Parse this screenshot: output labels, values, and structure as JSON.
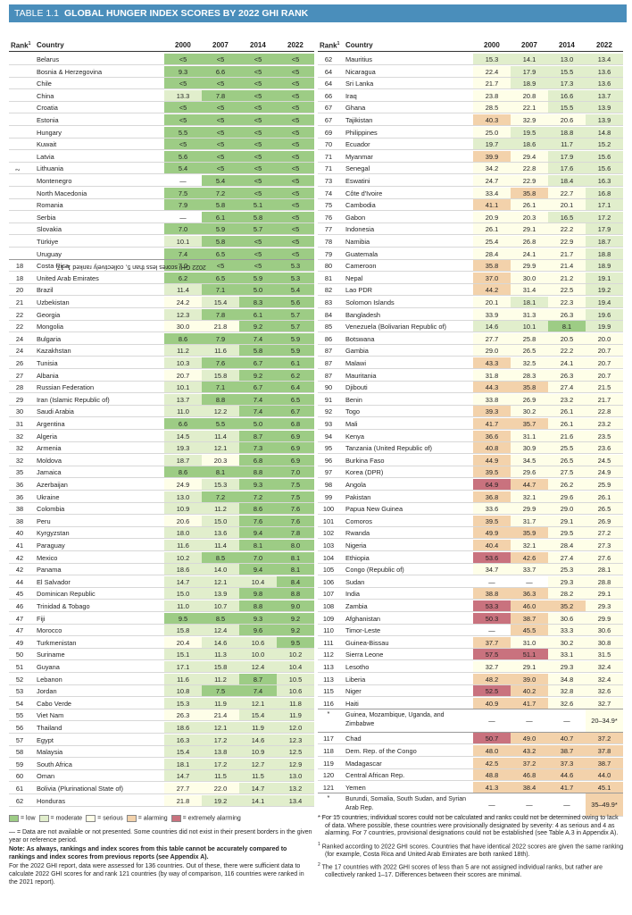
{
  "title": {
    "number": "TABLE 1.1",
    "text": "GLOBAL HUNGER INDEX SCORES BY 2022 GHI RANK"
  },
  "headers": {
    "rank": "Rank",
    "rank_sup": "1",
    "country": "Country",
    "y0": "2000",
    "y1": "2007",
    "y2": "2014",
    "y3": "2022"
  },
  "side_label": {
    "text": "2022 GHI scores less than 5, collectively ranked 1–17.",
    "sup": "2"
  },
  "left_rows": [
    [
      "",
      "Belarus",
      "<5",
      "<5",
      "<5",
      "<5"
    ],
    [
      "",
      "Bosnia & Herzegovina",
      "9.3",
      "6.6",
      "<5",
      "<5"
    ],
    [
      "",
      "Chile",
      "<5",
      "<5",
      "<5",
      "<5"
    ],
    [
      "",
      "China",
      "13.3",
      "7.8",
      "<5",
      "<5"
    ],
    [
      "",
      "Croatia",
      "<5",
      "<5",
      "<5",
      "<5"
    ],
    [
      "",
      "Estonia",
      "<5",
      "<5",
      "<5",
      "<5"
    ],
    [
      "",
      "Hungary",
      "5.5",
      "<5",
      "<5",
      "<5"
    ],
    [
      "",
      "Kuwait",
      "<5",
      "<5",
      "<5",
      "<5"
    ],
    [
      "",
      "Latvia",
      "5.6",
      "<5",
      "<5",
      "<5"
    ],
    [
      "",
      "Lithuania",
      "5.4",
      "<5",
      "<5",
      "<5"
    ],
    [
      "",
      "Montenegro",
      "—",
      "5.4",
      "<5",
      "<5"
    ],
    [
      "",
      "North Macedonia",
      "7.5",
      "7.2",
      "<5",
      "<5"
    ],
    [
      "",
      "Romania",
      "7.9",
      "5.8",
      "5.1",
      "<5"
    ],
    [
      "",
      "Serbia",
      "—",
      "6.1",
      "5.8",
      "<5"
    ],
    [
      "",
      "Slovakia",
      "7.0",
      "5.9",
      "5.7",
      "<5"
    ],
    [
      "",
      "Türkiye",
      "10.1",
      "5.8",
      "<5",
      "<5"
    ],
    [
      "",
      "Uruguay",
      "7.4",
      "6.5",
      "<5",
      "<5"
    ],
    [
      "18",
      "Costa Rica",
      "7.0",
      "<5",
      "<5",
      "5.3"
    ],
    [
      "18",
      "United Arab Emirates",
      "6.2",
      "6.5",
      "5.9",
      "5.3"
    ],
    [
      "20",
      "Brazil",
      "11.4",
      "7.1",
      "5.0",
      "5.4"
    ],
    [
      "21",
      "Uzbekistan",
      "24.2",
      "15.4",
      "8.3",
      "5.6"
    ],
    [
      "22",
      "Georgia",
      "12.3",
      "7.8",
      "6.1",
      "5.7"
    ],
    [
      "22",
      "Mongolia",
      "30.0",
      "21.8",
      "9.2",
      "5.7"
    ],
    [
      "24",
      "Bulgaria",
      "8.6",
      "7.9",
      "7.4",
      "5.9"
    ],
    [
      "24",
      "Kazakhstan",
      "11.2",
      "11.6",
      "5.8",
      "5.9"
    ],
    [
      "26",
      "Tunisia",
      "10.3",
      "7.6",
      "6.7",
      "6.1"
    ],
    [
      "27",
      "Albania",
      "20.7",
      "15.8",
      "9.2",
      "6.2"
    ],
    [
      "28",
      "Russian Federation",
      "10.1",
      "7.1",
      "6.7",
      "6.4"
    ],
    [
      "29",
      "Iran (Islamic Republic of)",
      "13.7",
      "8.8",
      "7.4",
      "6.5"
    ],
    [
      "30",
      "Saudi Arabia",
      "11.0",
      "12.2",
      "7.4",
      "6.7"
    ],
    [
      "31",
      "Argentina",
      "6.6",
      "5.5",
      "5.0",
      "6.8"
    ],
    [
      "32",
      "Algeria",
      "14.5",
      "11.4",
      "8.7",
      "6.9"
    ],
    [
      "32",
      "Armenia",
      "19.3",
      "12.1",
      "7.3",
      "6.9"
    ],
    [
      "32",
      "Moldova",
      "18.7",
      "20.3",
      "6.8",
      "6.9"
    ],
    [
      "35",
      "Jamaica",
      "8.6",
      "8.1",
      "8.8",
      "7.0"
    ],
    [
      "36",
      "Azerbaijan",
      "24.9",
      "15.3",
      "9.3",
      "7.5"
    ],
    [
      "36",
      "Ukraine",
      "13.0",
      "7.2",
      "7.2",
      "7.5"
    ],
    [
      "38",
      "Colombia",
      "10.9",
      "11.2",
      "8.6",
      "7.6"
    ],
    [
      "38",
      "Peru",
      "20.6",
      "15.0",
      "7.6",
      "7.6"
    ],
    [
      "40",
      "Kyrgyzstan",
      "18.0",
      "13.6",
      "9.4",
      "7.8"
    ],
    [
      "41",
      "Paraguay",
      "11.6",
      "11.4",
      "8.1",
      "8.0"
    ],
    [
      "42",
      "Mexico",
      "10.2",
      "8.5",
      "7.0",
      "8.1"
    ],
    [
      "42",
      "Panama",
      "18.6",
      "14.0",
      "9.4",
      "8.1"
    ],
    [
      "44",
      "El Salvador",
      "14.7",
      "12.1",
      "10.4",
      "8.4"
    ],
    [
      "45",
      "Dominican Republic",
      "15.0",
      "13.9",
      "9.8",
      "8.8"
    ],
    [
      "46",
      "Trinidad & Tobago",
      "11.0",
      "10.7",
      "8.8",
      "9.0"
    ],
    [
      "47",
      "Fiji",
      "9.5",
      "8.5",
      "9.3",
      "9.2"
    ],
    [
      "47",
      "Morocco",
      "15.8",
      "12.4",
      "9.6",
      "9.2"
    ],
    [
      "49",
      "Turkmenistan",
      "20.4",
      "14.6",
      "10.6",
      "9.5"
    ],
    [
      "50",
      "Suriname",
      "15.1",
      "11.3",
      "10.0",
      "10.2"
    ],
    [
      "51",
      "Guyana",
      "17.1",
      "15.8",
      "12.4",
      "10.4"
    ],
    [
      "52",
      "Lebanon",
      "11.6",
      "11.2",
      "8.7",
      "10.5"
    ],
    [
      "53",
      "Jordan",
      "10.8",
      "7.5",
      "7.4",
      "10.6"
    ],
    [
      "54",
      "Cabo Verde",
      "15.3",
      "11.9",
      "12.1",
      "11.8"
    ],
    [
      "55",
      "Viet Nam",
      "26.3",
      "21.4",
      "15.4",
      "11.9"
    ],
    [
      "56",
      "Thailand",
      "18.6",
      "12.1",
      "11.9",
      "12.0"
    ],
    [
      "57",
      "Egypt",
      "16.3",
      "17.2",
      "14.6",
      "12.3"
    ],
    [
      "58",
      "Malaysia",
      "15.4",
      "13.8",
      "10.9",
      "12.5"
    ],
    [
      "59",
      "South Africa",
      "18.1",
      "17.2",
      "12.7",
      "12.9"
    ],
    [
      "60",
      "Oman",
      "14.7",
      "11.5",
      "11.5",
      "13.0"
    ],
    [
      "61",
      "Bolivia (Plurinational State of)",
      "27.7",
      "22.0",
      "14.7",
      "13.2"
    ],
    [
      "62",
      "Honduras",
      "21.8",
      "19.2",
      "14.1",
      "13.4"
    ]
  ],
  "right_rows": [
    [
      "62",
      "Mauritius",
      "15.3",
      "14.1",
      "13.0",
      "13.4"
    ],
    [
      "64",
      "Nicaragua",
      "22.4",
      "17.9",
      "15.5",
      "13.6"
    ],
    [
      "64",
      "Sri Lanka",
      "21.7",
      "18.9",
      "17.3",
      "13.6"
    ],
    [
      "66",
      "Iraq",
      "23.8",
      "20.8",
      "16.6",
      "13.7"
    ],
    [
      "67",
      "Ghana",
      "28.5",
      "22.1",
      "15.5",
      "13.9"
    ],
    [
      "67",
      "Tajikistan",
      "40.3",
      "32.9",
      "20.6",
      "13.9"
    ],
    [
      "69",
      "Philippines",
      "25.0",
      "19.5",
      "18.8",
      "14.8"
    ],
    [
      "70",
      "Ecuador",
      "19.7",
      "18.6",
      "11.7",
      "15.2"
    ],
    [
      "71",
      "Myanmar",
      "39.9",
      "29.4",
      "17.9",
      "15.6"
    ],
    [
      "71",
      "Senegal",
      "34.2",
      "22.8",
      "17.6",
      "15.6"
    ],
    [
      "73",
      "Eswatini",
      "24.7",
      "22.9",
      "18.4",
      "16.3"
    ],
    [
      "74",
      "Côte d'Ivoire",
      "33.4",
      "35.8",
      "22.7",
      "16.8"
    ],
    [
      "75",
      "Cambodia",
      "41.1",
      "26.1",
      "20.1",
      "17.1"
    ],
    [
      "76",
      "Gabon",
      "20.9",
      "20.3",
      "16.5",
      "17.2"
    ],
    [
      "77",
      "Indonesia",
      "26.1",
      "29.1",
      "22.2",
      "17.9"
    ],
    [
      "78",
      "Namibia",
      "25.4",
      "26.8",
      "22.9",
      "18.7"
    ],
    [
      "79",
      "Guatemala",
      "28.4",
      "24.1",
      "21.7",
      "18.8"
    ],
    [
      "80",
      "Cameroon",
      "35.8",
      "29.9",
      "21.4",
      "18.9"
    ],
    [
      "81",
      "Nepal",
      "37.0",
      "30.0",
      "21.2",
      "19.1"
    ],
    [
      "82",
      "Lao PDR",
      "44.2",
      "31.4",
      "22.5",
      "19.2"
    ],
    [
      "83",
      "Solomon Islands",
      "20.1",
      "18.1",
      "22.3",
      "19.4"
    ],
    [
      "84",
      "Bangladesh",
      "33.9",
      "31.3",
      "26.3",
      "19.6"
    ],
    [
      "85",
      "Venezuela (Bolivarian Republic of)",
      "14.6",
      "10.1",
      "8.1",
      "19.9"
    ],
    [
      "86",
      "Botswana",
      "27.7",
      "25.8",
      "20.5",
      "20.0"
    ],
    [
      "87",
      "Gambia",
      "29.0",
      "26.5",
      "22.2",
      "20.7"
    ],
    [
      "87",
      "Malawi",
      "43.3",
      "32.5",
      "24.1",
      "20.7"
    ],
    [
      "87",
      "Mauritania",
      "31.8",
      "28.3",
      "26.3",
      "20.7"
    ],
    [
      "90",
      "Djibouti",
      "44.3",
      "35.8",
      "27.4",
      "21.5"
    ],
    [
      "91",
      "Benin",
      "33.8",
      "26.9",
      "23.2",
      "21.7"
    ],
    [
      "92",
      "Togo",
      "39.3",
      "30.2",
      "26.1",
      "22.8"
    ],
    [
      "93",
      "Mali",
      "41.7",
      "35.7",
      "26.1",
      "23.2"
    ],
    [
      "94",
      "Kenya",
      "36.6",
      "31.1",
      "21.6",
      "23.5"
    ],
    [
      "95",
      "Tanzania (United Republic of)",
      "40.8",
      "30.9",
      "25.5",
      "23.6"
    ],
    [
      "96",
      "Burkina Faso",
      "44.9",
      "34.5",
      "26.5",
      "24.5"
    ],
    [
      "97",
      "Korea (DPR)",
      "39.5",
      "29.6",
      "27.5",
      "24.9"
    ],
    [
      "98",
      "Angola",
      "64.9",
      "44.7",
      "26.2",
      "25.9"
    ],
    [
      "99",
      "Pakistan",
      "36.8",
      "32.1",
      "29.6",
      "26.1"
    ],
    [
      "100",
      "Papua New Guinea",
      "33.6",
      "29.9",
      "29.0",
      "26.5"
    ],
    [
      "101",
      "Comoros",
      "39.5",
      "31.7",
      "29.1",
      "26.9"
    ],
    [
      "102",
      "Rwanda",
      "49.9",
      "35.9",
      "29.5",
      "27.2"
    ],
    [
      "103",
      "Nigeria",
      "40.4",
      "32.1",
      "28.4",
      "27.3"
    ],
    [
      "104",
      "Ethiopia",
      "53.6",
      "42.6",
      "27.4",
      "27.6"
    ],
    [
      "105",
      "Congo (Republic of)",
      "34.7",
      "33.7",
      "25.3",
      "28.1"
    ],
    [
      "106",
      "Sudan",
      "—",
      "—",
      "29.3",
      "28.8"
    ],
    [
      "107",
      "India",
      "38.8",
      "36.3",
      "28.2",
      "29.1"
    ],
    [
      "108",
      "Zambia",
      "53.3",
      "46.0",
      "35.2",
      "29.3"
    ],
    [
      "109",
      "Afghanistan",
      "50.3",
      "38.7",
      "30.6",
      "29.9"
    ],
    [
      "110",
      "Timor-Leste",
      "—",
      "45.5",
      "33.3",
      "30.6"
    ],
    [
      "111",
      "Guinea-Bissau",
      "37.7",
      "31.0",
      "30.2",
      "30.8"
    ],
    [
      "112",
      "Sierra Leone",
      "57.5",
      "51.1",
      "33.1",
      "31.5"
    ],
    [
      "113",
      "Lesotho",
      "32.7",
      "29.1",
      "29.3",
      "32.4"
    ],
    [
      "113",
      "Liberia",
      "48.2",
      "39.0",
      "34.8",
      "32.4"
    ],
    [
      "115",
      "Niger",
      "52.5",
      "40.2",
      "32.8",
      "32.6"
    ],
    [
      "116",
      "Haiti",
      "40.9",
      "41.7",
      "32.6",
      "32.7"
    ],
    [
      "*",
      "Guinea, Mozambique, Uganda, and Zimbabwe",
      "—",
      "—",
      "—",
      "20–34.9*"
    ],
    [
      "117",
      "Chad",
      "50.7",
      "49.0",
      "40.7",
      "37.2"
    ],
    [
      "118",
      "Dem. Rep. of the Congo",
      "48.0",
      "43.2",
      "38.7",
      "37.8"
    ],
    [
      "119",
      "Madagascar",
      "42.5",
      "37.2",
      "37.3",
      "38.7"
    ],
    [
      "120",
      "Central African Rep.",
      "48.8",
      "46.8",
      "44.6",
      "44.0"
    ],
    [
      "121",
      "Yemen",
      "41.3",
      "38.4",
      "41.7",
      "45.1"
    ],
    [
      "*",
      "Burundi, Somalia, South Sudan, and Syrian Arab Rep.",
      "—",
      "—",
      "—",
      "35–49.9*"
    ]
  ],
  "legend": {
    "items": [
      {
        "label": "≤ 9.9",
        "suffix": "= low",
        "color": "#9dcc85"
      },
      {
        "label": "10.0–19.9",
        "suffix": "= moderate",
        "color": "#e1eecc"
      },
      {
        "label": "20.0–34.9",
        "suffix": "= serious",
        "color": "#fefee8"
      },
      {
        "label": "35.0–49.9",
        "suffix": "= alarming",
        "color": "#f3d2ab"
      },
      {
        "label": "≥ 50.0",
        "suffix": "= extremely alarming",
        "color": "#c9727e"
      }
    ],
    "short_items": [
      "= low",
      "= moderate",
      "= serious",
      "= alarming",
      "= extremely alarming"
    ]
  },
  "footnotes_left": {
    "dash": "— = Data are not available or not presented. Some countries did not exist in their present borders in the given year or reference period.",
    "note_bold": "Note: As always, rankings and index scores from this table cannot be accurately compared to rankings and index scores from previous reports (see Appendix A).",
    "report": "For the 2022 GHI report, data were assessed for 136 countries. Out of these, there were sufficient data to calculate 2022 GHI scores for and rank 121 countries (by way of comparison, 116 countries were ranked in the 2021 report)."
  },
  "footnotes_right": {
    "star": "* For 15 countries, individual scores could not be calculated and ranks could not be determined owing to lack of data. Where possible, these countries were provisionally designated by severity: 4 as serious and 4 as alarming. For 7 countries, provisional designations could not be established (see Table A.3 in Appendix A).",
    "one_mark": "1",
    "one": "Ranked according to 2022 GHI scores. Countries that have identical 2022 scores are given the same ranking (for example, Costa Rica and United Arab Emirates are both ranked 18th).",
    "two_mark": "2",
    "two": "The 17 countries with 2022 GHI scores of less than 5 are not assigned individual ranks, but rather are collectively ranked 1–17. Differences between their scores are minimal."
  },
  "colors": {
    "low": "#9dcc85",
    "moderate": "#e1eecc",
    "serious": "#fefee8",
    "alarming": "#f3d2ab",
    "extremely_alarming": "#c9727e",
    "title_bar": "#4a8ebb"
  }
}
